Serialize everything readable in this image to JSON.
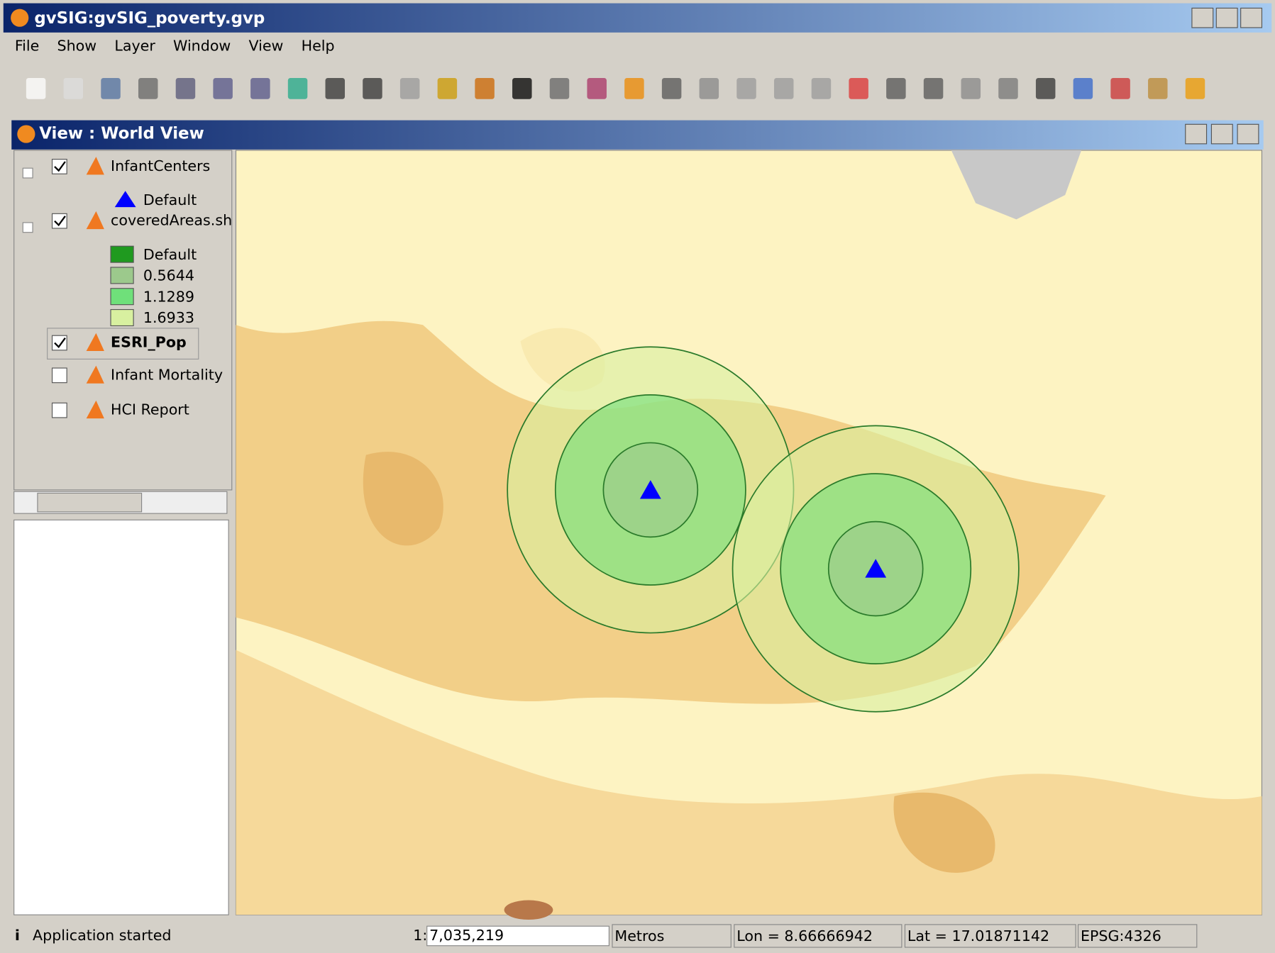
{
  "window": {
    "title": "gvSIG:gvSIG_poverty.gvp"
  },
  "menu": [
    "File",
    "Show",
    "Layer",
    "Window",
    "View",
    "Help"
  ],
  "view": {
    "title": "View : World View"
  },
  "layers": [
    {
      "name": "InfantCenters",
      "checked": true,
      "legend": [
        {
          "label": "Default",
          "color": "#0000ff",
          "symbol": "triangle"
        }
      ]
    },
    {
      "name": "coveredAreas.sh",
      "checked": true,
      "legend": [
        {
          "label": "Default",
          "color": "#1f9a1f",
          "symbol": "square"
        },
        {
          "label": "0.5644",
          "color": "#9cc98c",
          "symbol": "square"
        },
        {
          "label": "1.1289",
          "color": "#6fe07a",
          "symbol": "square"
        },
        {
          "label": "1.6933",
          "color": "#d8f0a0",
          "symbol": "square"
        }
      ]
    },
    {
      "name": "ESRI_Pop",
      "checked": true,
      "selected": true,
      "legend": []
    },
    {
      "name": "Infant Mortality",
      "checked": false,
      "legend": []
    },
    {
      "name": "HCI Report",
      "checked": false,
      "legend": []
    }
  ],
  "status": {
    "message": "Application started",
    "scale_prefix": "1:",
    "scale": "7,035,219",
    "units": "Metros",
    "lon": "Lon = 8.66666942",
    "lat": "Lat = 17.01871142",
    "crs": "EPSG:4326"
  }
}
